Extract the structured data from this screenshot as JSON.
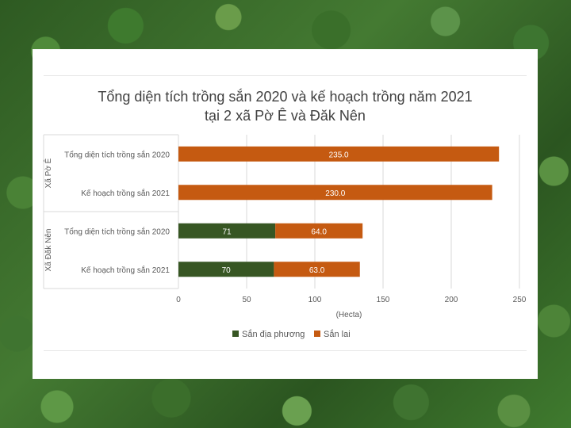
{
  "chart_data": {
    "type": "bar",
    "orientation": "horizontal",
    "stacked": true,
    "title_lines": [
      "Tổng diện tích trồng sắn 2020 và kế hoạch trồng năm 2021",
      "tại 2 xã Pờ Ê và Đăk Nên"
    ],
    "xlabel": "(Hecta)",
    "xlim": [
      0,
      250
    ],
    "xticks": [
      0,
      50,
      100,
      150,
      200,
      250
    ],
    "groups": [
      {
        "name": "Xã Pờ Ê",
        "categories": [
          "Tổng diện tích trồng sắn 2020",
          "Kế hoạch trồng sắn 2021"
        ]
      },
      {
        "name": "Xã Đăk Nên",
        "categories": [
          "Tổng diện tích trồng sắn 2020",
          "Kế hoạch trồng sắn 2021"
        ]
      }
    ],
    "series": [
      {
        "name": "Sắn địa phương",
        "color": "#375623",
        "values": [
          null,
          null,
          71,
          70
        ],
        "labels": [
          "",
          "",
          "71",
          "70"
        ]
      },
      {
        "name": "Sắn lai",
        "color": "#c55a11",
        "values": [
          235.0,
          230.0,
          64.0,
          63.0
        ],
        "labels": [
          "235.0",
          "230.0",
          "64.0",
          "63.0"
        ]
      }
    ],
    "grid": true,
    "legend_position": "bottom"
  }
}
